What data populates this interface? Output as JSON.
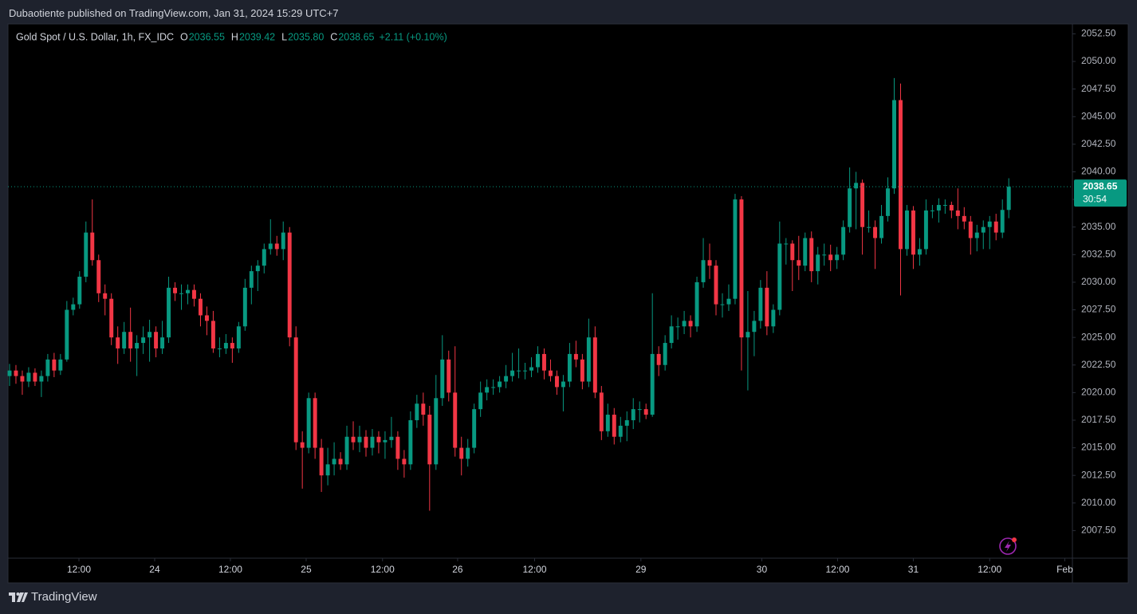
{
  "header": {
    "published": "Dubaotiente published on TradingView.com, Jan 31, 2024 15:29 UTC+7"
  },
  "footer": {
    "brand": "TradingView"
  },
  "chart_data": {
    "type": "candlestick",
    "title": "Gold Spot / U.S. Dollar, 1h, FX_IDC",
    "legend": {
      "o_label": "O",
      "o": "2036.55",
      "h_label": "H",
      "h": "2039.42",
      "l_label": "L",
      "l": "2035.80",
      "c_label": "C",
      "c": "2038.65",
      "change": "+2.11 (+0.10%)"
    },
    "up_color": "#089981",
    "down_color": "#f23645",
    "last_price": {
      "value": 2038.65,
      "label": "2038.65"
    },
    "countdown": "30:54",
    "xlim": [
      -0.25,
      167
    ],
    "xticks": [
      {
        "value": 10.9,
        "label": "12:00"
      },
      {
        "value": 22.8,
        "label": "24"
      },
      {
        "value": 34.7,
        "label": "12:00"
      },
      {
        "value": 46.6,
        "label": "25"
      },
      {
        "value": 58.6,
        "label": "12:00"
      },
      {
        "value": 70.4,
        "label": "26"
      },
      {
        "value": 82.5,
        "label": "12:00"
      },
      {
        "value": 99.2,
        "label": "29"
      },
      {
        "value": 118.2,
        "label": "30"
      },
      {
        "value": 130.1,
        "label": "12:00"
      },
      {
        "value": 142.0,
        "label": "31"
      },
      {
        "value": 154.0,
        "label": "12:00"
      },
      {
        "value": 165.8,
        "label": "Feb"
      }
    ],
    "ylim": [
      2005,
      2053.4
    ],
    "yticks": [
      {
        "value": 2007.5,
        "label": "2007.50"
      },
      {
        "value": 2010,
        "label": "2010.00"
      },
      {
        "value": 2012.5,
        "label": "2012.50"
      },
      {
        "value": 2015,
        "label": "2015.00"
      },
      {
        "value": 2017.5,
        "label": "2017.50"
      },
      {
        "value": 2020,
        "label": "2020.00"
      },
      {
        "value": 2022.5,
        "label": "2022.50"
      },
      {
        "value": 2025,
        "label": "2025.00"
      },
      {
        "value": 2027.5,
        "label": "2027.50"
      },
      {
        "value": 2030,
        "label": "2030.00"
      },
      {
        "value": 2032.5,
        "label": "2032.50"
      },
      {
        "value": 2035,
        "label": "2035.00"
      },
      {
        "value": 2037.5,
        "label": "2037.50"
      },
      {
        "value": 2040,
        "label": "2040.00"
      },
      {
        "value": 2042.5,
        "label": "2042.50"
      },
      {
        "value": 2045,
        "label": "2045.00"
      },
      {
        "value": 2047.5,
        "label": "2047.50"
      },
      {
        "value": 2050,
        "label": "2050.00"
      },
      {
        "value": 2052.5,
        "label": "2052.50"
      }
    ],
    "ohlc": [
      [
        2021.5,
        2022.6,
        2020.6,
        2022
      ],
      [
        2022,
        2022.5,
        2020.8,
        2021.5
      ],
      [
        2021.5,
        2022,
        2019.8,
        2021
      ],
      [
        2021,
        2022.3,
        2020.5,
        2021.8
      ],
      [
        2021.8,
        2022.2,
        2020.6,
        2021
      ],
      [
        2021,
        2022,
        2019.6,
        2021.5
      ],
      [
        2021.5,
        2023.5,
        2021,
        2023
      ],
      [
        2023,
        2023.6,
        2021.4,
        2022
      ],
      [
        2022,
        2023.5,
        2021.6,
        2023
      ],
      [
        2023,
        2028.3,
        2022.8,
        2027.5
      ],
      [
        2027.5,
        2028.6,
        2027,
        2028
      ],
      [
        2028,
        2031,
        2027.6,
        2030.5
      ],
      [
        2030.5,
        2035.5,
        2030,
        2034.5
      ],
      [
        2034.5,
        2037.5,
        2031.5,
        2032
      ],
      [
        2032,
        2032.5,
        2028.2,
        2029
      ],
      [
        2029,
        2029.8,
        2027,
        2028.5
      ],
      [
        2028.5,
        2029,
        2024.3,
        2025
      ],
      [
        2025,
        2026,
        2022.6,
        2024
      ],
      [
        2024,
        2026.4,
        2023.5,
        2025.5
      ],
      [
        2025.5,
        2027.7,
        2022.8,
        2024
      ],
      [
        2024,
        2025.2,
        2021.5,
        2024.5
      ],
      [
        2024.5,
        2026,
        2023.5,
        2025
      ],
      [
        2025,
        2026.6,
        2022.8,
        2025.5
      ],
      [
        2025.5,
        2026,
        2023.2,
        2024
      ],
      [
        2024,
        2026.5,
        2023.5,
        2025
      ],
      [
        2025,
        2030.5,
        2024.5,
        2029.5
      ],
      [
        2029.5,
        2030,
        2028.3,
        2029
      ],
      [
        2029,
        2029.8,
        2027.5,
        2029
      ],
      [
        2029,
        2029.8,
        2028,
        2029.3
      ],
      [
        2029.3,
        2029.8,
        2027.8,
        2028.5
      ],
      [
        2028.5,
        2029,
        2026,
        2027
      ],
      [
        2027,
        2027.8,
        2025.2,
        2026.5
      ],
      [
        2026.5,
        2027.4,
        2023.6,
        2024
      ],
      [
        2024,
        2025,
        2023.2,
        2024
      ],
      [
        2024,
        2025.3,
        2023.5,
        2024.5
      ],
      [
        2024.5,
        2025,
        2022.7,
        2024
      ],
      [
        2024,
        2026.4,
        2023.6,
        2026
      ],
      [
        2026,
        2030.3,
        2025.6,
        2029.5
      ],
      [
        2029.5,
        2031.5,
        2028,
        2031
      ],
      [
        2031,
        2032,
        2029.2,
        2031.5
      ],
      [
        2031.5,
        2033.5,
        2030.8,
        2033
      ],
      [
        2033,
        2035.7,
        2032.5,
        2033.5
      ],
      [
        2033.5,
        2034.2,
        2032.4,
        2033
      ],
      [
        2033,
        2035.5,
        2032,
        2034.5
      ],
      [
        2034.5,
        2035,
        2024.2,
        2025
      ],
      [
        2025,
        2026,
        2014.8,
        2015.5
      ],
      [
        2015.5,
        2016.5,
        2011.3,
        2015
      ],
      [
        2015,
        2020,
        2014.5,
        2019.5
      ],
      [
        2019.5,
        2020,
        2014,
        2015
      ],
      [
        2015,
        2015.8,
        2011,
        2012.5
      ],
      [
        2012.5,
        2015,
        2011.6,
        2013.5
      ],
      [
        2013.5,
        2015.5,
        2012.5,
        2014
      ],
      [
        2014,
        2014.6,
        2013,
        2013.5
      ],
      [
        2013.5,
        2017,
        2013,
        2016
      ],
      [
        2016,
        2017.4,
        2014.8,
        2015.5
      ],
      [
        2015.5,
        2017,
        2014.6,
        2016
      ],
      [
        2016,
        2016.6,
        2014.2,
        2015
      ],
      [
        2015,
        2016.7,
        2014.3,
        2016
      ],
      [
        2016,
        2016.5,
        2014.5,
        2015.5
      ],
      [
        2015.5,
        2016.5,
        2014,
        2015.7
      ],
      [
        2015.7,
        2017.8,
        2015,
        2016
      ],
      [
        2016,
        2016.5,
        2013,
        2014
      ],
      [
        2014,
        2014.8,
        2012.3,
        2013.5
      ],
      [
        2013.5,
        2018.3,
        2013,
        2017.5
      ],
      [
        2017.5,
        2019.8,
        2016.8,
        2019
      ],
      [
        2019,
        2020,
        2017,
        2018
      ],
      [
        2018,
        2018.8,
        2009.3,
        2013.5
      ],
      [
        2013.5,
        2021.6,
        2013,
        2019.5
      ],
      [
        2019.5,
        2025.2,
        2018.8,
        2023
      ],
      [
        2023,
        2023.8,
        2019.2,
        2020
      ],
      [
        2020,
        2024.2,
        2014.2,
        2015
      ],
      [
        2015,
        2016,
        2012.5,
        2014
      ],
      [
        2014,
        2015.8,
        2013.3,
        2015
      ],
      [
        2015,
        2019,
        2014.5,
        2018.5
      ],
      [
        2018.5,
        2021,
        2017.8,
        2020
      ],
      [
        2020,
        2021.2,
        2019.3,
        2020.5
      ],
      [
        2020.5,
        2021.2,
        2019.8,
        2020.5
      ],
      [
        2020.5,
        2021.5,
        2020,
        2021
      ],
      [
        2021,
        2022.5,
        2020.4,
        2021.5
      ],
      [
        2021.5,
        2023.6,
        2021,
        2022
      ],
      [
        2022,
        2024,
        2021.3,
        2022
      ],
      [
        2022,
        2022.7,
        2021.2,
        2022
      ],
      [
        2022,
        2023.2,
        2021.4,
        2022.3
      ],
      [
        2022.3,
        2024.2,
        2021.8,
        2023.5
      ],
      [
        2023.5,
        2024,
        2021.2,
        2022
      ],
      [
        2022,
        2023,
        2021,
        2021.5
      ],
      [
        2021.5,
        2022,
        2019.8,
        2020.5
      ],
      [
        2020.5,
        2021.6,
        2018.3,
        2021
      ],
      [
        2021,
        2024.5,
        2020.5,
        2023.5
      ],
      [
        2023.5,
        2024.7,
        2022.3,
        2023
      ],
      [
        2023,
        2023.5,
        2020.3,
        2021
      ],
      [
        2021,
        2026.7,
        2020.5,
        2025
      ],
      [
        2025,
        2026,
        2019.5,
        2020
      ],
      [
        2020,
        2020.6,
        2015.7,
        2016.5
      ],
      [
        2016.5,
        2019,
        2016,
        2018
      ],
      [
        2018,
        2018.6,
        2015.3,
        2016
      ],
      [
        2016,
        2017.8,
        2015.5,
        2017
      ],
      [
        2017,
        2018.3,
        2015.6,
        2017.5
      ],
      [
        2017.5,
        2019.5,
        2016.7,
        2018.5
      ],
      [
        2018.5,
        2019.2,
        2017.3,
        2018.5
      ],
      [
        2018.5,
        2019,
        2017.6,
        2018
      ],
      [
        2018,
        2029,
        2017.8,
        2023.5
      ],
      [
        2023.5,
        2024.2,
        2021.5,
        2022.5
      ],
      [
        2022.5,
        2025.2,
        2022,
        2024.5
      ],
      [
        2024.5,
        2027,
        2024,
        2026
      ],
      [
        2026,
        2026.8,
        2024.8,
        2026
      ],
      [
        2026,
        2027.4,
        2025.3,
        2026.5
      ],
      [
        2026.5,
        2027,
        2025,
        2026
      ],
      [
        2026,
        2030.5,
        2025.5,
        2030
      ],
      [
        2030,
        2034,
        2029.5,
        2032
      ],
      [
        2032,
        2033.5,
        2030.3,
        2031.5
      ],
      [
        2031.5,
        2032,
        2027,
        2028
      ],
      [
        2028,
        2029,
        2026.8,
        2028
      ],
      [
        2028,
        2029.8,
        2027.4,
        2028.5
      ],
      [
        2028.5,
        2038,
        2028,
        2037.5
      ],
      [
        2037.5,
        2037.8,
        2022,
        2025
      ],
      [
        2025,
        2029.2,
        2020.2,
        2025.5
      ],
      [
        2025.5,
        2027.4,
        2023.3,
        2026.5
      ],
      [
        2026.5,
        2030.2,
        2025.8,
        2029.5
      ],
      [
        2029.5,
        2031,
        2025.2,
        2026
      ],
      [
        2026,
        2028,
        2025.4,
        2027.5
      ],
      [
        2027.5,
        2035.5,
        2027,
        2033.5
      ],
      [
        2033.5,
        2034,
        2031.6,
        2033.5
      ],
      [
        2033.5,
        2033.8,
        2029.2,
        2032
      ],
      [
        2032,
        2034.2,
        2030.2,
        2031.5
      ],
      [
        2031.5,
        2034.5,
        2031,
        2034
      ],
      [
        2034,
        2034.6,
        2030,
        2031
      ],
      [
        2031,
        2033.2,
        2029.8,
        2032.5
      ],
      [
        2032.5,
        2033.5,
        2031.5,
        2032.5
      ],
      [
        2032.5,
        2033.4,
        2031,
        2032
      ],
      [
        2032,
        2033.2,
        2031.2,
        2032.5
      ],
      [
        2032.5,
        2035.6,
        2032,
        2035
      ],
      [
        2035,
        2040.4,
        2034.5,
        2038.5
      ],
      [
        2038.5,
        2040,
        2034.8,
        2039
      ],
      [
        2039,
        2039.3,
        2032.5,
        2035
      ],
      [
        2035,
        2036.5,
        2034.5,
        2035
      ],
      [
        2035,
        2035.6,
        2031.2,
        2034
      ],
      [
        2034,
        2037,
        2033.5,
        2036
      ],
      [
        2036,
        2039.5,
        2035.5,
        2038.5
      ],
      [
        2038.5,
        2048.5,
        2038,
        2046.5
      ],
      [
        2046.5,
        2048,
        2028.8,
        2033
      ],
      [
        2033,
        2037,
        2032.4,
        2036.5
      ],
      [
        2036.5,
        2036.9,
        2031.2,
        2032.5
      ],
      [
        2032.5,
        2034,
        2031.5,
        2033
      ],
      [
        2033,
        2037.5,
        2032.5,
        2036.5
      ],
      [
        2036.5,
        2037,
        2035.8,
        2036.5
      ],
      [
        2036.5,
        2037.6,
        2035.4,
        2037
      ],
      [
        2037,
        2037.5,
        2036.2,
        2037
      ],
      [
        2037,
        2037.3,
        2035.8,
        2036.5
      ],
      [
        2036.5,
        2038.5,
        2034.8,
        2036
      ],
      [
        2036,
        2036.8,
        2034.8,
        2035.5
      ],
      [
        2035.5,
        2036,
        2032.5,
        2034
      ],
      [
        2034,
        2035.2,
        2032.8,
        2034.5
      ],
      [
        2034.5,
        2035.6,
        2033,
        2035
      ],
      [
        2035,
        2036,
        2033,
        2035.5
      ],
      [
        2035.5,
        2036.2,
        2033.8,
        2034.5
      ],
      [
        2034.5,
        2037.5,
        2034,
        2036.55
      ],
      [
        2036.55,
        2039.42,
        2035.8,
        2038.65
      ]
    ]
  }
}
